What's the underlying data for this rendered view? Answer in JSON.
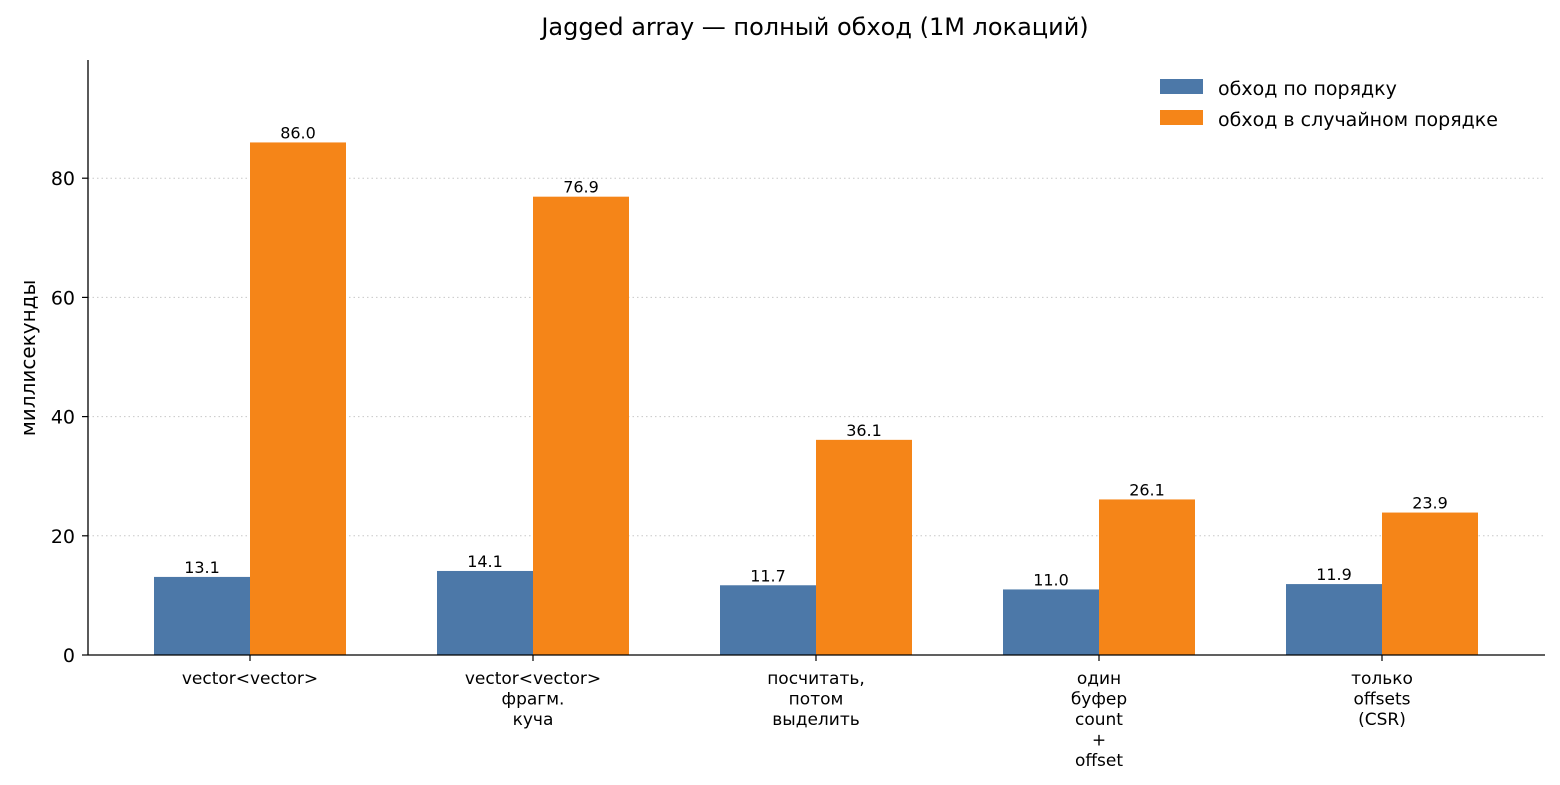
{
  "chart_data": {
    "type": "bar",
    "title": "Jagged array — полный обход (1M локаций)",
    "xlabel": "",
    "ylabel": "миллисекунды",
    "ylim": [
      0,
      100
    ],
    "yticks": [
      0,
      20,
      40,
      60,
      80
    ],
    "grid": "y-dotted",
    "legend_position": "top-right",
    "categories": [
      [
        "vector<vector>"
      ],
      [
        "vector<vector>",
        "фрагм.",
        "куча"
      ],
      [
        "посчитать,",
        "потом",
        "выделить"
      ],
      [
        "один",
        "буфер",
        "count",
        "+",
        "offset"
      ],
      [
        "только",
        "offsets",
        "(CSR)"
      ]
    ],
    "series": [
      {
        "name": "обход по порядку",
        "color": "#4c78a8",
        "values": [
          13.1,
          14.1,
          11.7,
          11.0,
          11.9
        ],
        "labels": [
          "13.1",
          "14.1",
          "11.7",
          "11.0",
          "11.9"
        ]
      },
      {
        "name": "обход в случайном порядке",
        "color": "#f58518",
        "values": [
          86.0,
          76.9,
          36.1,
          26.1,
          23.9
        ],
        "labels": [
          "86.0",
          "76.9",
          "36.1",
          "26.1",
          "23.9"
        ]
      }
    ]
  }
}
